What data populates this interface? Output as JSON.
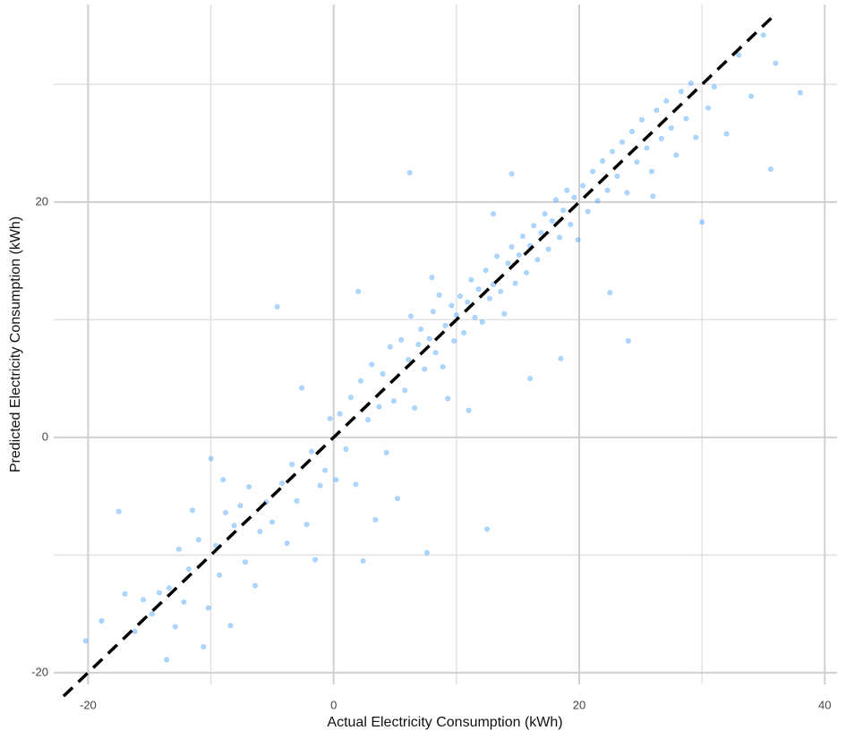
{
  "chart_data": {
    "type": "scatter",
    "x_label": "Actual Electricity Consumption (kWh)",
    "y_label": "Predicted Electricity Consumption (kWh)",
    "xlim": [
      -22.8,
      41
    ],
    "ylim": [
      -21,
      36.8
    ],
    "xticks": [
      -20,
      0,
      20,
      40
    ],
    "yticks": [
      -20,
      0,
      20
    ],
    "xminor": [
      -10,
      10,
      30
    ],
    "yminor": [
      -10,
      10,
      30
    ],
    "grid": true,
    "color": "#1e90ff",
    "identity_line": {
      "x": [
        -22,
        36
      ],
      "y": [
        -22,
        36
      ],
      "color": "#000000"
    },
    "x": [
      -20.2,
      -18.9,
      -17,
      -16.2,
      -15.5,
      -14.8,
      -14.2,
      -13.6,
      -13.4,
      -12.9,
      -12.2,
      -11.8,
      -11.5,
      -11.0,
      -10.6,
      -10.2,
      -10.0,
      -9.6,
      -9.3,
      -8.8,
      -8.4,
      -8.1,
      -7.6,
      -7.2,
      -6.9,
      -6.4,
      -6.0,
      -5.5,
      -5.0,
      -4.6,
      -4.2,
      -3.8,
      -3.4,
      -3.0,
      -2.6,
      -2.2,
      -1.8,
      -1.5,
      -1.1,
      -0.7,
      -0.3,
      0.2,
      -17.5,
      -12.6,
      -9.0,
      0.5,
      1.0,
      1.4,
      1.8,
      2.2,
      2.4,
      2.8,
      3.1,
      3.4,
      3.7,
      4.0,
      4.3,
      4.6,
      4.9,
      5.2,
      5.5,
      5.8,
      6.1,
      6.3,
      6.6,
      6.9,
      7.1,
      7.4,
      7.6,
      7.8,
      8.1,
      8.3,
      8.6,
      8.9,
      9.1,
      9.3,
      9.6,
      9.8,
      6.2,
      8.0,
      2.0,
      10.0,
      10.3,
      10.6,
      10.9,
      11.2,
      11.5,
      11.8,
      12.1,
      12.4,
      12.7,
      13.0,
      13.3,
      13.6,
      13.9,
      14.2,
      14.5,
      14.8,
      15.1,
      15.4,
      15.7,
      16.0,
      16.3,
      16.6,
      16.9,
      17.2,
      17.5,
      17.8,
      18.1,
      18.4,
      18.7,
      19.0,
      19.3,
      19.6,
      19.9,
      11.0,
      14.5,
      18.5,
      12.5,
      16.0,
      13.0,
      20.3,
      20.7,
      21.1,
      21.5,
      21.9,
      22.3,
      22.7,
      23.1,
      23.5,
      23.9,
      24.3,
      24.7,
      25.1,
      25.5,
      25.9,
      26.3,
      26.7,
      27.1,
      27.5,
      27.9,
      28.3,
      28.7,
      29.1,
      29.5,
      30.0,
      30.5,
      31.0,
      32.0,
      33.0,
      34.0,
      35.0,
      35.6,
      36.0,
      38.0,
      24.0,
      22.5,
      26.0
    ],
    "values": [
      -17.3,
      -15.6,
      -13.3,
      -16.5,
      -13.8,
      -15.0,
      -13.2,
      -18.9,
      -12.8,
      -16.1,
      -14.0,
      -11.2,
      -6.2,
      -8.7,
      -17.8,
      -14.5,
      -1.8,
      -9.2,
      -11.7,
      -6.4,
      -16.0,
      -7.5,
      -5.8,
      -10.6,
      -4.2,
      -12.6,
      -8.0,
      -5.5,
      -7.2,
      11.1,
      -3.9,
      -9.0,
      -2.3,
      -5.4,
      4.2,
      -7.4,
      -1.2,
      -10.4,
      -4.1,
      -2.8,
      1.6,
      -3.6,
      -6.3,
      -9.5,
      -3.6,
      2.0,
      -1.0,
      3.4,
      -4.0,
      4.8,
      -10.5,
      1.5,
      6.2,
      -7.0,
      2.6,
      5.4,
      -1.3,
      7.7,
      3.1,
      -5.2,
      8.3,
      4.0,
      6.6,
      10.3,
      2.5,
      7.9,
      9.2,
      5.8,
      -9.8,
      8.4,
      10.7,
      7.2,
      12.1,
      6.0,
      9.5,
      3.3,
      11.2,
      8.2,
      22.5,
      13.6,
      12.4,
      10.4,
      12.0,
      8.9,
      11.5,
      13.4,
      10.2,
      12.6,
      9.8,
      14.2,
      11.8,
      13.0,
      15.4,
      12.4,
      10.5,
      14.8,
      16.2,
      13.1,
      15.5,
      17.1,
      14.0,
      16.3,
      18.0,
      15.1,
      17.4,
      19.0,
      16.0,
      18.4,
      20.2,
      17.0,
      19.3,
      21.0,
      18.1,
      20.4,
      16.8,
      2.3,
      22.4,
      6.7,
      -7.8,
      5.0,
      19.0,
      21.4,
      19.2,
      22.6,
      20.1,
      23.5,
      21.0,
      24.3,
      22.2,
      25.1,
      20.8,
      26.0,
      23.4,
      27.0,
      24.6,
      22.6,
      27.8,
      25.4,
      28.6,
      26.3,
      24.0,
      29.4,
      27.1,
      30.1,
      25.5,
      18.3,
      28.0,
      29.8,
      25.8,
      32.5,
      29.0,
      34.2,
      22.8,
      31.8,
      29.3,
      8.2,
      12.3,
      20.5
    ]
  }
}
